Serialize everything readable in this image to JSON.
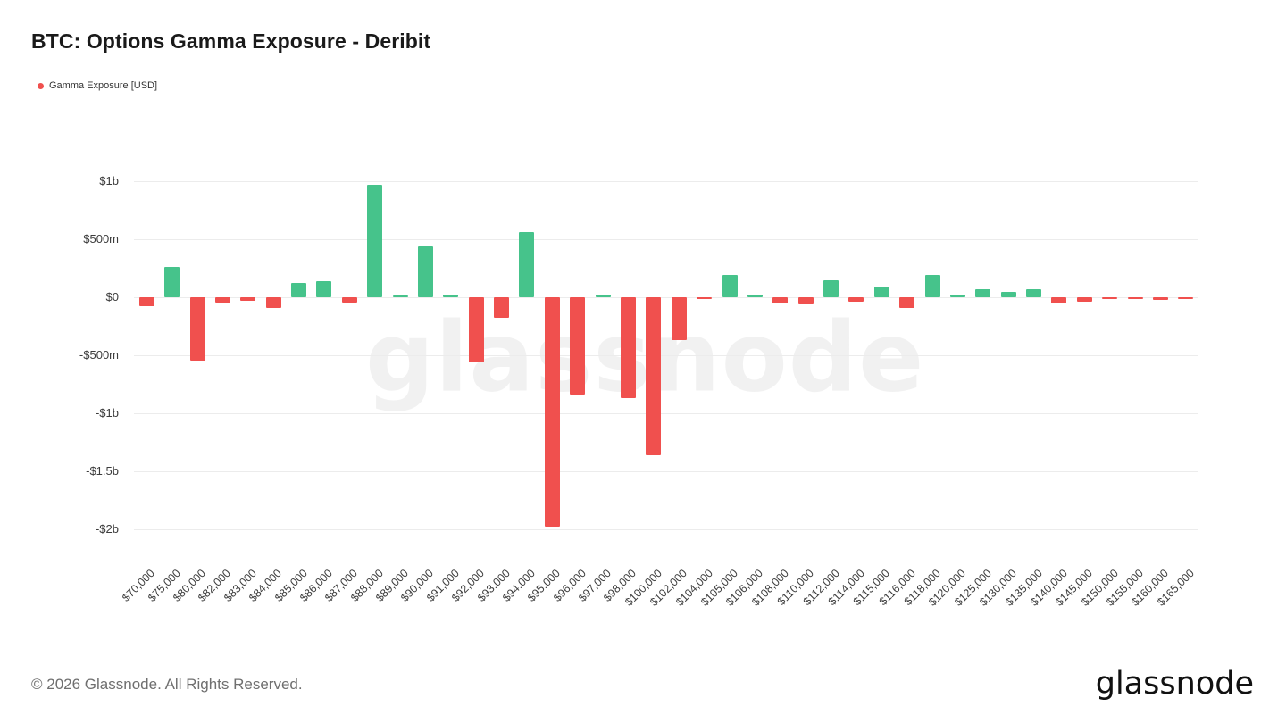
{
  "header": {
    "title": "BTC: Options Gamma Exposure - Deribit"
  },
  "legend": {
    "label": "Gamma Exposure [USD]",
    "color": "#f0504e"
  },
  "watermark": "glassnode",
  "footer": {
    "copyright": "© 2026 Glassnode. All Rights Reserved.",
    "brand": "glassnode"
  },
  "chart_data": {
    "type": "bar",
    "title": "BTC: Options Gamma Exposure - Deribit",
    "series_name": "Gamma Exposure [USD]",
    "units": "millions USD",
    "categories": [
      "$70,000",
      "$75,000",
      "$80,000",
      "$82,000",
      "$83,000",
      "$84,000",
      "$85,000",
      "$86,000",
      "$87,000",
      "$88,000",
      "$89,000",
      "$90,000",
      "$91,000",
      "$92,000",
      "$93,000",
      "$94,000",
      "$95,000",
      "$96,000",
      "$97,000",
      "$98,000",
      "$100,000",
      "$102,000",
      "$104,000",
      "$105,000",
      "$106,000",
      "$108,000",
      "$110,000",
      "$112,000",
      "$114,000",
      "$115,000",
      "$116,000",
      "$118,000",
      "$120,000",
      "$125,000",
      "$130,000",
      "$135,000",
      "$140,000",
      "$145,000",
      "$150,000",
      "$155,000",
      "$160,000",
      "$165,000"
    ],
    "values": [
      -80,
      260,
      -550,
      -45,
      -30,
      -95,
      120,
      135,
      -45,
      970,
      15,
      440,
      25,
      -560,
      -180,
      560,
      -1980,
      -840,
      20,
      -870,
      -1360,
      -370,
      -15,
      190,
      25,
      -55,
      -65,
      150,
      -40,
      90,
      -90,
      190,
      20,
      70,
      50,
      70,
      -55,
      -35,
      -15,
      -5,
      -20,
      -5
    ],
    "xlabel": "",
    "ylabel": "",
    "ylim": [
      -2250,
      1140
    ],
    "yticks": [
      {
        "value": 1000,
        "label": "$1b"
      },
      {
        "value": 500,
        "label": "$500m"
      },
      {
        "value": 0,
        "label": "$0"
      },
      {
        "value": -500,
        "label": "-$500m"
      },
      {
        "value": -1000,
        "label": "-$1b"
      },
      {
        "value": -1500,
        "label": "-$1.5b"
      },
      {
        "value": -2000,
        "label": "-$2b"
      }
    ],
    "grid": true,
    "legend_position": "top-left",
    "colors": {
      "positive": "#46c38b",
      "negative": "#f0504e"
    }
  }
}
